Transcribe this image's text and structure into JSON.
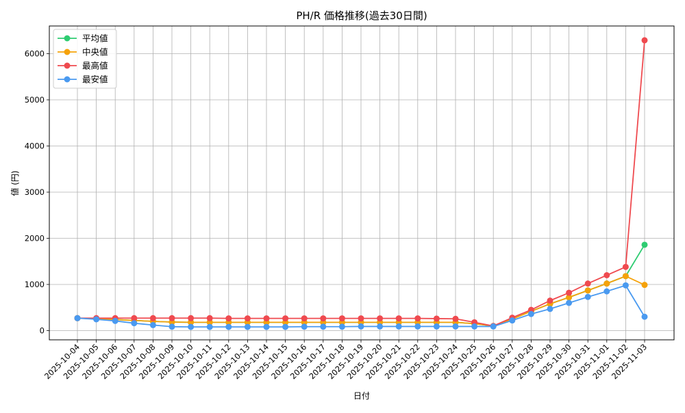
{
  "chart_data": {
    "type": "line",
    "title": "PH/R 価格推移(過去30日間)",
    "xlabel": "日付",
    "ylabel": "値 (円)",
    "ylim": [
      -200,
      6600
    ],
    "yticks": [
      0,
      1000,
      2000,
      3000,
      4000,
      5000,
      6000
    ],
    "grid": true,
    "legend_position": "upper-left",
    "categories": [
      "2025-10-04",
      "2025-10-05",
      "2025-10-06",
      "2025-10-07",
      "2025-10-08",
      "2025-10-09",
      "2025-10-10",
      "2025-10-11",
      "2025-10-12",
      "2025-10-13",
      "2025-10-14",
      "2025-10-15",
      "2025-10-16",
      "2025-10-17",
      "2025-10-18",
      "2025-10-19",
      "2025-10-20",
      "2025-10-21",
      "2025-10-22",
      "2025-10-23",
      "2025-10-24",
      "2025-10-25",
      "2025-10-26",
      "2025-10-27",
      "2025-10-28",
      "2025-10-29",
      "2025-10-30",
      "2025-10-31",
      "2025-11-01",
      "2025-11-02",
      "2025-11-03"
    ],
    "series": [
      {
        "name": "平均値",
        "color": "#2ecc71",
        "values": [
          270,
          255,
          240,
          220,
          200,
          185,
          180,
          180,
          180,
          180,
          180,
          180,
          180,
          180,
          180,
          180,
          180,
          180,
          180,
          180,
          180,
          150,
          100,
          250,
          420,
          580,
          720,
          870,
          1020,
          1180,
          1860
        ]
      },
      {
        "name": "中央値",
        "color": "#f5a20a",
        "values": [
          270,
          255,
          240,
          220,
          200,
          185,
          180,
          180,
          180,
          180,
          180,
          180,
          180,
          180,
          180,
          180,
          180,
          180,
          180,
          180,
          180,
          150,
          100,
          250,
          420,
          580,
          720,
          870,
          1020,
          1180,
          990
        ]
      },
      {
        "name": "最高値",
        "color": "#ef4a4f",
        "values": [
          270,
          270,
          270,
          270,
          270,
          270,
          270,
          270,
          265,
          265,
          265,
          265,
          265,
          265,
          265,
          265,
          265,
          265,
          265,
          260,
          255,
          180,
          100,
          280,
          450,
          650,
          820,
          1020,
          1200,
          1380,
          6290
        ]
      },
      {
        "name": "最安値",
        "color": "#4a9af0",
        "values": [
          270,
          245,
          210,
          160,
          120,
          85,
          80,
          80,
          80,
          80,
          80,
          80,
          85,
          85,
          85,
          90,
          90,
          90,
          90,
          90,
          90,
          90,
          90,
          220,
          360,
          470,
          600,
          730,
          850,
          980,
          300
        ]
      }
    ]
  }
}
